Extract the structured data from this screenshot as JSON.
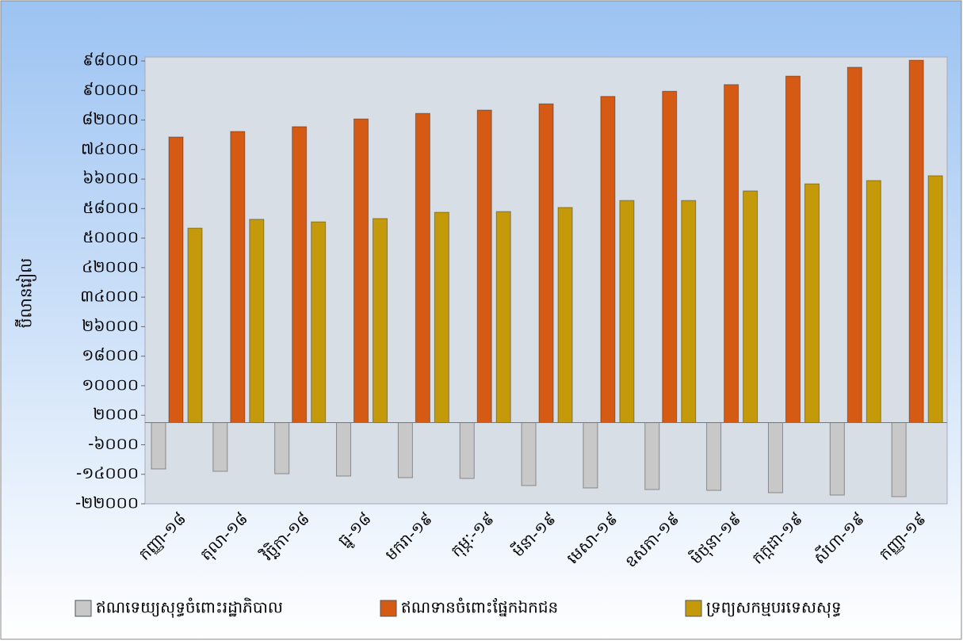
{
  "chart_data": {
    "type": "bar",
    "y_label": "ប៊ីលានរៀល",
    "categories": [
      "កញ្ញា-១៨",
      "តុលា-១៨",
      "វិច្ឆិកា-១៨",
      "ធ្នូ-១៨",
      "មករា-១៩",
      "កុម្ភៈ-១៩",
      "មីនា-១៩",
      "មេសា-១៩",
      "ឧសភា-១៩",
      "មិថុនា-១៩",
      "កក្កដា-១៩",
      "សីហា-១៩",
      "កញ្ញា-១៩"
    ],
    "series": [
      {
        "name": "ឥណទេយ្យសុទ្ធចំពោះរដ្ឋាភិបាល",
        "color": "#c8c8c8",
        "values": [
          -12560,
          -13200,
          -13850,
          -14490,
          -14920,
          -15140,
          -17070,
          -17710,
          -18140,
          -18360,
          -19000,
          -19640,
          -20070
        ]
      },
      {
        "name": "ឥណទានចំពោះផ្នែកឯកជន",
        "color": "#d55a14",
        "values": [
          77400,
          78900,
          80200,
          82300,
          83800,
          84700,
          86400,
          88400,
          89800,
          91600,
          93900,
          96300,
          98200
        ]
      },
      {
        "name": "ទ្រព្យសកម្មបរទេសសុទ្ធ",
        "color": "#c49a0a",
        "values": [
          52700,
          55100,
          54400,
          55300,
          57000,
          57200,
          58300,
          60200,
          60200,
          62800,
          64700,
          65600,
          66900
        ]
      }
    ],
    "ylim": [
      -22000,
      98000
    ],
    "yticks": [
      {
        "value": -22000,
        "label": "-២២០០០"
      },
      {
        "value": -14000,
        "label": "-១៤០០០"
      },
      {
        "value": -6000,
        "label": "-៦០០០"
      },
      {
        "value": 2000,
        "label": "២០០០"
      },
      {
        "value": 10000,
        "label": "១០០០០"
      },
      {
        "value": 18000,
        "label": "១៨០០០"
      },
      {
        "value": 26000,
        "label": "២៦០០០"
      },
      {
        "value": 34000,
        "label": "៣៤០០០"
      },
      {
        "value": 42000,
        "label": "៤២០០០"
      },
      {
        "value": 50000,
        "label": "៥០០០០"
      },
      {
        "value": 58000,
        "label": "៥៨០០០"
      },
      {
        "value": 66000,
        "label": "៦៦០០០"
      },
      {
        "value": 74000,
        "label": "៧៤០០០"
      },
      {
        "value": 82000,
        "label": "៨២០០០"
      },
      {
        "value": 90000,
        "label": "៩០០០០"
      },
      {
        "value": 98000,
        "label": "៩៨០០០"
      }
    ],
    "legend": "bottom"
  }
}
